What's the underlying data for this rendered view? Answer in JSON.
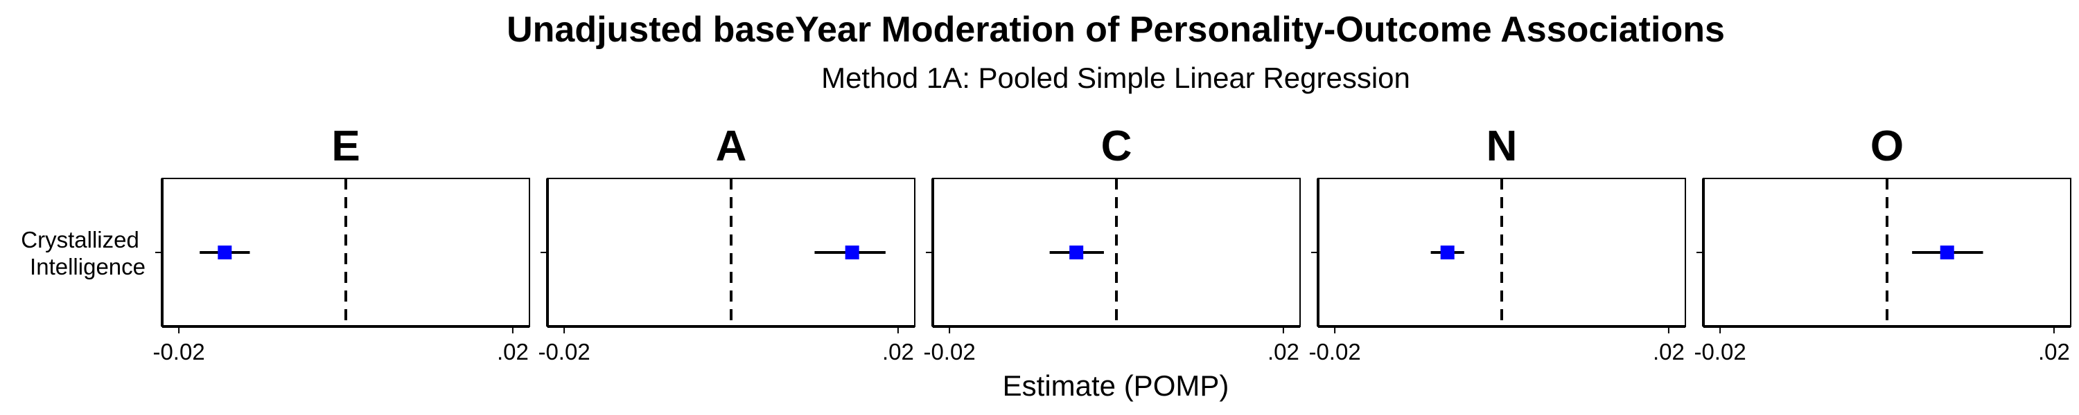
{
  "chart_data": {
    "type": "scatter",
    "title": "Unadjusted baseYear Moderation of Personality-Outcome Associations",
    "subtitle": "Method 1A: Pooled Simple Linear Regression",
    "xlabel": "Estimate (POMP)",
    "xlim": [
      -0.022,
      0.022
    ],
    "xticks": [
      -0.02,
      0.02
    ],
    "xtick_labels": [
      "-0.02",
      ".02"
    ],
    "reference_line": 0,
    "y_categories": [
      "Crystallized Intelligence"
    ],
    "y_category_lines": [
      "Crystallized",
      "Intelligence"
    ],
    "point_color": "#0000ff",
    "facets": [
      {
        "label": "E",
        "estimate": -0.0145,
        "ci": [
          -0.0175,
          -0.0115
        ]
      },
      {
        "label": "A",
        "estimate": 0.0145,
        "ci": [
          0.01,
          0.0185
        ]
      },
      {
        "label": "C",
        "estimate": -0.0048,
        "ci": [
          -0.008,
          -0.0015
        ]
      },
      {
        "label": "N",
        "estimate": -0.0065,
        "ci": [
          -0.0085,
          -0.0045
        ]
      },
      {
        "label": "O",
        "estimate": 0.0072,
        "ci": [
          0.003,
          0.0115
        ]
      }
    ]
  }
}
